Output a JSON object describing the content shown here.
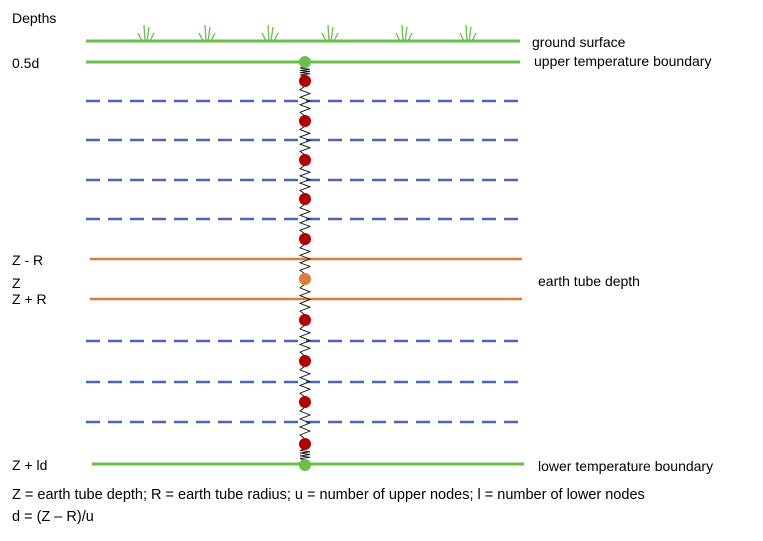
{
  "depth_labels": {
    "header": "Depths",
    "top": "0.5d",
    "z_minus_r": "Z - R",
    "z": "Z",
    "z_plus_r": "Z + R",
    "bottom": "Z + ld"
  },
  "boundary_labels": {
    "ground": "ground surface",
    "upper": "upper temperature boundary",
    "tube": "earth tube depth",
    "lower": "lower temperature boundary"
  },
  "caption": {
    "line1": "Z = earth tube depth; R = earth tube radius; u = number of upper nodes; l = number of lower nodes",
    "line2": "d = (Z – R)/u"
  },
  "colors": {
    "green": "#6abf4b",
    "blue_dashed": "#4a66b8",
    "orange": "#e07b39",
    "red_node": "#b30000",
    "orange_node": "#e07b39",
    "spring": "#111111"
  },
  "icons": [
    "grass-tuft-icon",
    "spring-resistor-icon",
    "node-dot-icon"
  ]
}
